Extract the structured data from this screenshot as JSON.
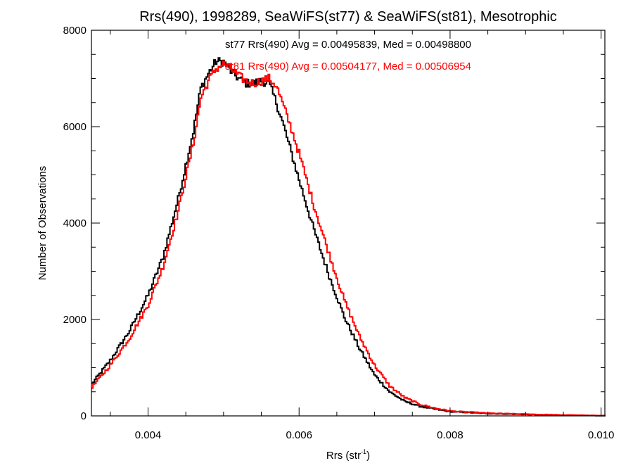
{
  "chart_data": {
    "type": "line",
    "title": "Rrs(490), 1998289, SeaWiFS(st77) & SeaWiFS(st81), Mesotrophic",
    "xlabel_main": "Rrs (str",
    "xlabel_sup": "-1",
    "xlabel_close": ")",
    "ylabel": "Number of Observations",
    "xlim": [
      0.00325,
      0.01005
    ],
    "ylim": [
      0,
      8000
    ],
    "xticks": [
      0.004,
      0.006,
      0.008,
      0.01
    ],
    "xtick_labels": [
      "0.004",
      "0.006",
      "0.008",
      "0.010"
    ],
    "yticks": [
      0,
      2000,
      4000,
      6000,
      8000
    ],
    "ytick_labels": [
      "0",
      "2000",
      "4000",
      "6000",
      "8000"
    ],
    "x_minor_step": 0.0005,
    "y_minor_step": 500,
    "grid": false,
    "step_style": "histogram",
    "annotations": [
      {
        "text": "st77 Rrs(490) Avg = 0.00495839, Med = 0.00498800",
        "color": "#000000"
      },
      {
        "text": "st81 Rrs(490) Avg = 0.00504177, Med = 0.00506954",
        "color": "#ff0000"
      }
    ],
    "series": [
      {
        "color": "#000000",
        "x": [
          0.00325,
          0.0035,
          0.00375,
          0.004,
          0.0042,
          0.0044,
          0.0046,
          0.0047,
          0.0048,
          0.0049,
          0.005,
          0.0051,
          0.0052,
          0.0053,
          0.0054,
          0.0055,
          0.0056,
          0.0057,
          0.0058,
          0.0059,
          0.006,
          0.0062,
          0.0064,
          0.0066,
          0.0068,
          0.007,
          0.0072,
          0.0074,
          0.0076,
          0.0078,
          0.008,
          0.0085,
          0.009,
          0.0095,
          0.01
        ],
        "y": [
          650,
          1150,
          1750,
          2500,
          3300,
          4500,
          5900,
          6800,
          7100,
          7350,
          7350,
          7150,
          7000,
          6900,
          6900,
          6950,
          6900,
          6500,
          6000,
          5450,
          4900,
          3850,
          2900,
          2050,
          1400,
          850,
          500,
          300,
          200,
          140,
          90,
          50,
          30,
          15,
          5
        ]
      },
      {
        "color": "#ff0000",
        "x": [
          0.00325,
          0.0035,
          0.00375,
          0.004,
          0.0042,
          0.0044,
          0.0046,
          0.0047,
          0.0048,
          0.0049,
          0.005,
          0.0051,
          0.0052,
          0.0053,
          0.0054,
          0.0055,
          0.0056,
          0.0057,
          0.0058,
          0.0059,
          0.006,
          0.0062,
          0.0064,
          0.0066,
          0.0068,
          0.007,
          0.0072,
          0.0074,
          0.0076,
          0.0078,
          0.008,
          0.0085,
          0.009,
          0.0095,
          0.01
        ],
        "y": [
          580,
          1050,
          1600,
          2300,
          3100,
          4250,
          5650,
          6600,
          6950,
          7200,
          7300,
          7200,
          7050,
          6950,
          6900,
          6950,
          7000,
          6850,
          6400,
          5950,
          5450,
          4350,
          3350,
          2400,
          1650,
          1050,
          620,
          380,
          240,
          160,
          100,
          55,
          35,
          18,
          6
        ]
      }
    ]
  }
}
